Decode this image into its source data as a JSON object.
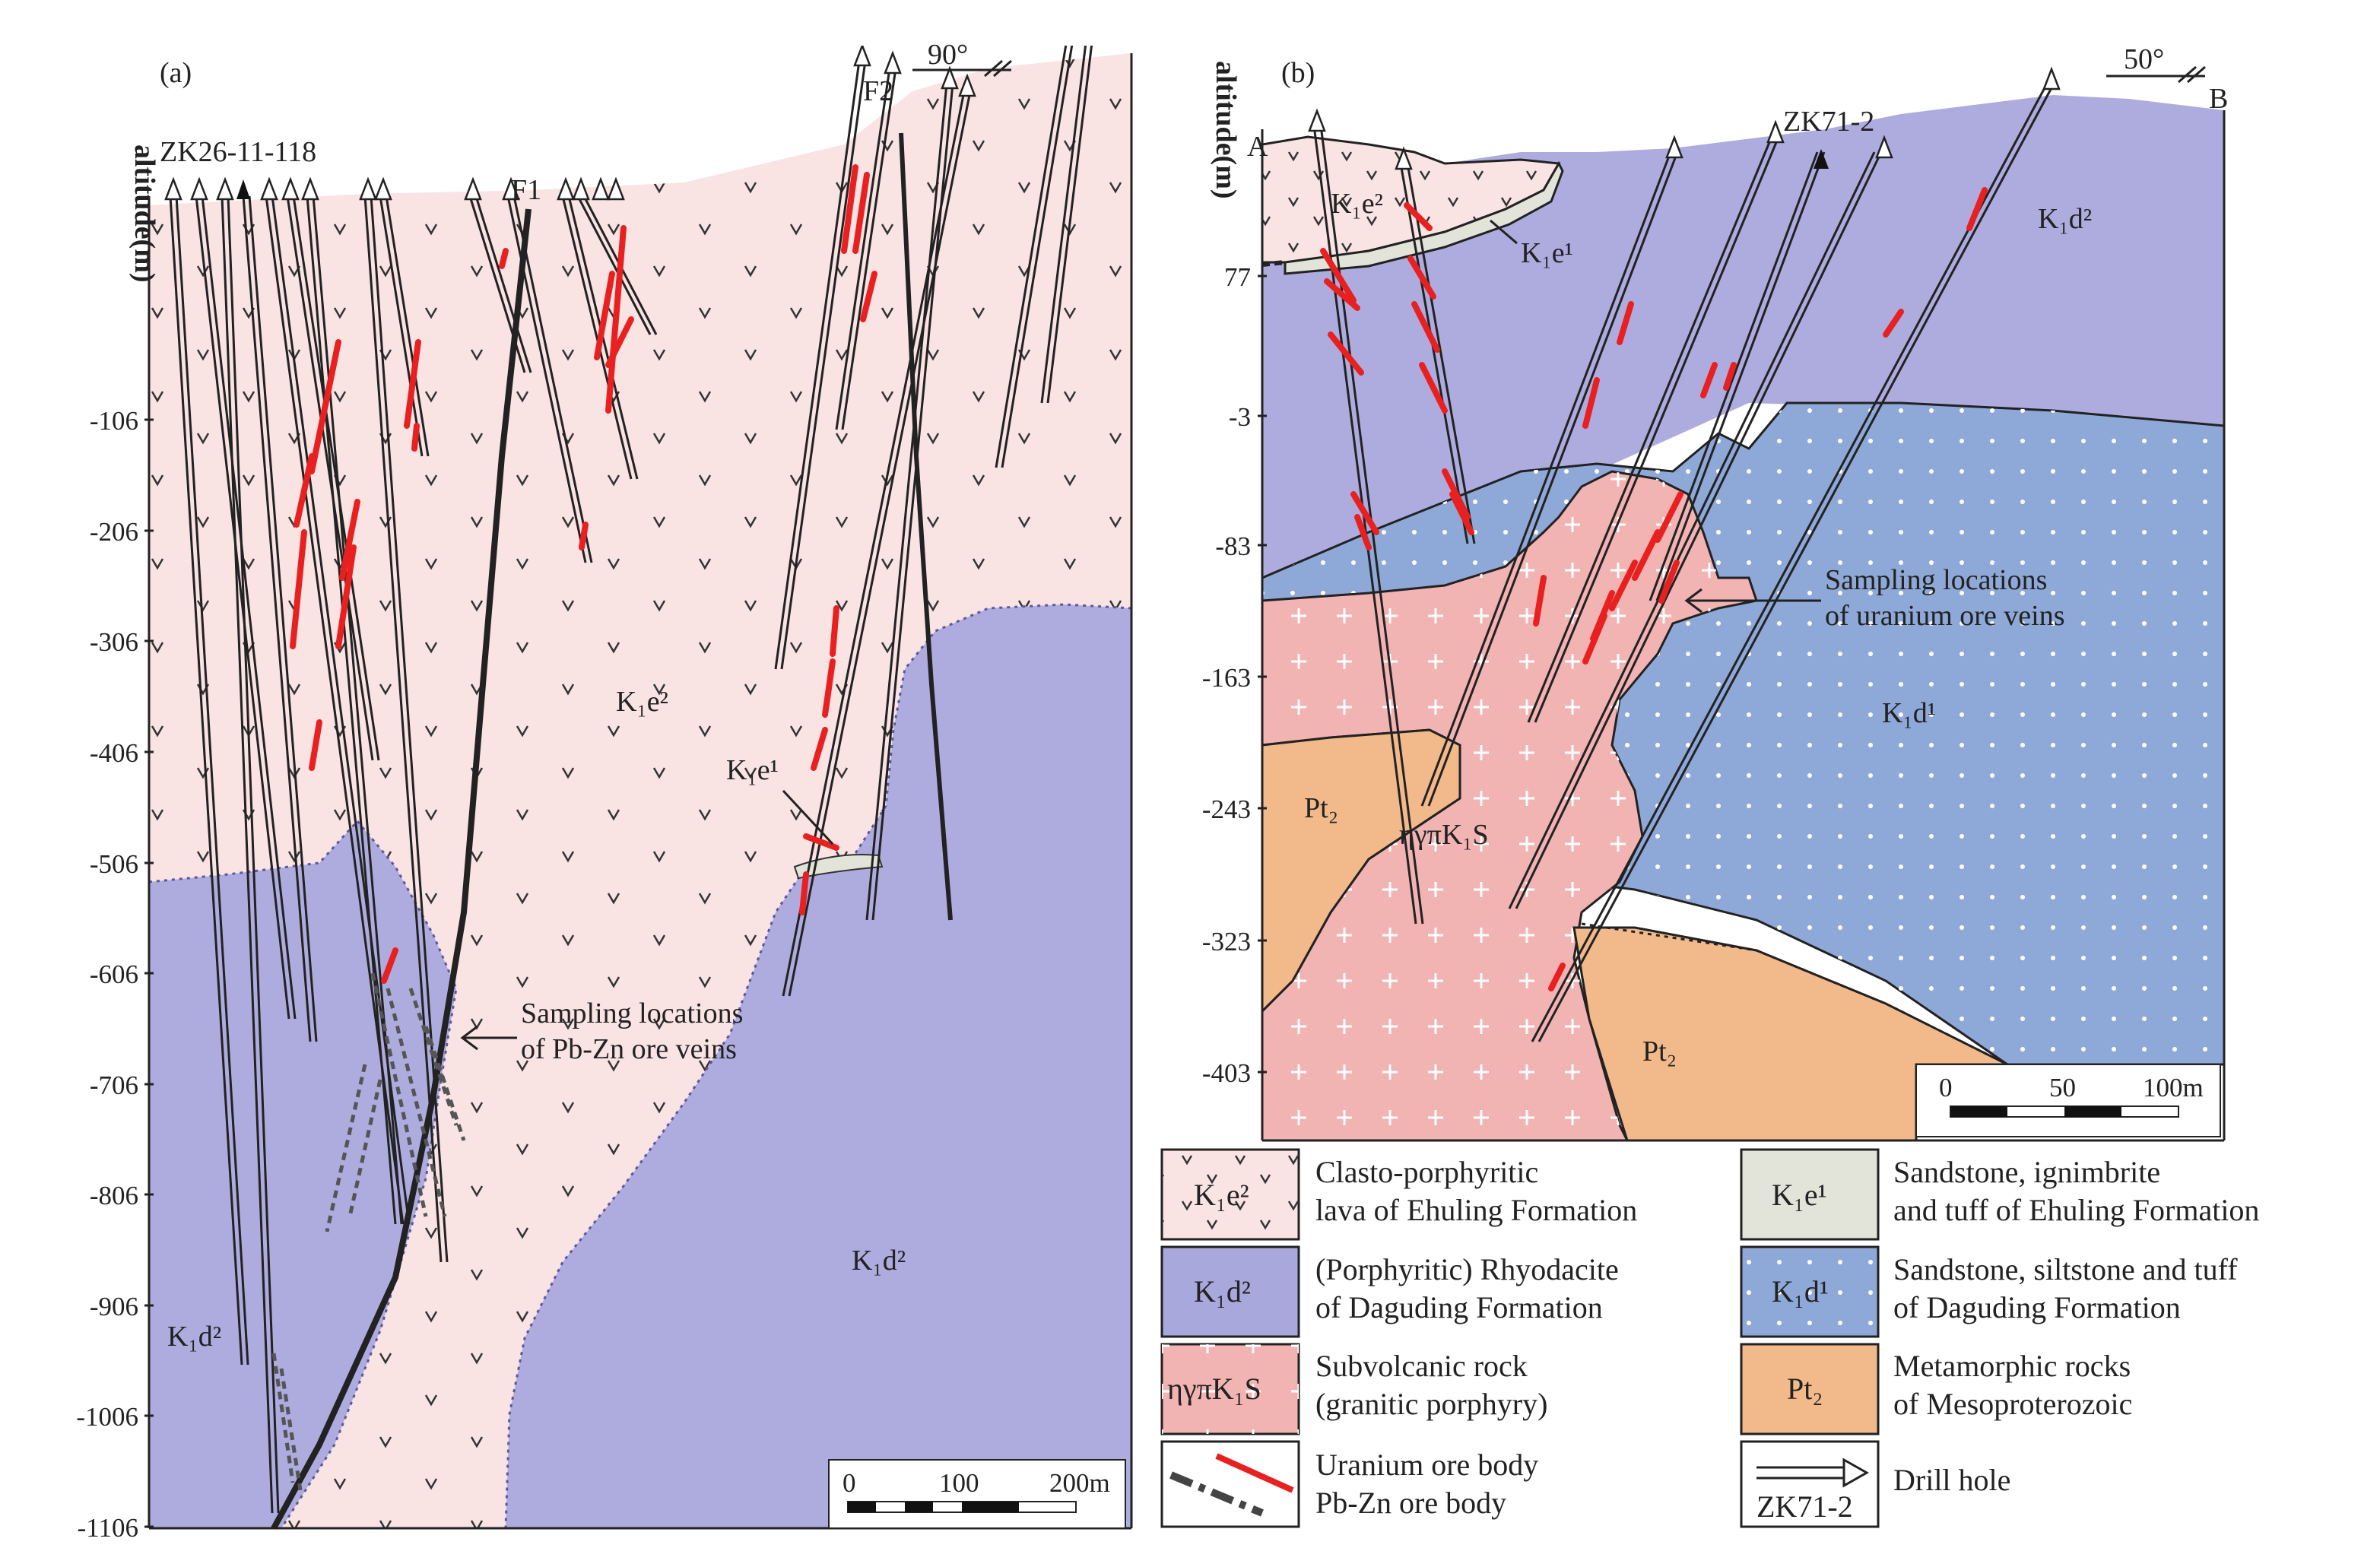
{
  "panel_a": {
    "tag": "(a)",
    "altitude_label": "altitude(m)",
    "ticks": [
      "-106",
      "-206",
      "-306",
      "-406",
      "-506",
      "-606",
      "-706",
      "-806",
      "-906",
      "-1006",
      "-1106"
    ],
    "orientation": "90°",
    "drill_label": "ZK26-11-118",
    "fault_labels": [
      "F1",
      "F2"
    ],
    "unit_labels": {
      "k1e2": "K₁e²",
      "k1e1": "K₁e¹",
      "k1d2_right": "K₁d²",
      "k1d2_left": "K₁d²"
    },
    "sampling_note": [
      "Sampling locations",
      "of Pb-Zn ore veins"
    ],
    "scale_bar": [
      "0",
      "100",
      "200m"
    ]
  },
  "panel_b": {
    "tag": "(b)",
    "altitude_label": "altitude(m)",
    "ticks": [
      "77",
      "-3",
      "-83",
      "-163",
      "-243",
      "-323",
      "-403"
    ],
    "orientation": "50°",
    "end_labels": [
      "A",
      "B"
    ],
    "drill_label": "ZK71-2",
    "unit_labels": {
      "k1e2": "K₁e²",
      "k1e1": "K₁e¹",
      "k1d2": "K₁d²",
      "k1d1": "K₁d¹",
      "pt2_left": "Pt₂",
      "pt2_right": "Pt₂",
      "intrusion": "ηγπK₁S"
    },
    "sampling_note": [
      "Sampling locations",
      "of uranium ore veins"
    ],
    "scale_bar": [
      "0",
      "50",
      "100m"
    ]
  },
  "legend": [
    {
      "symbol": "K₁e²",
      "lines": [
        "Clasto-porphyritic",
        "lava of Ehuling Formation"
      ],
      "color": "#f9e3e3"
    },
    {
      "symbol": "K₁e¹",
      "lines": [
        "Sandstone, ignimbrite",
        "and tuff of Ehuling Formation"
      ],
      "color": "#e2e4da"
    },
    {
      "symbol": "K₁d²",
      "lines": [
        "(Porphyritic) Rhyodacite",
        "of Daguding Formation"
      ],
      "color": "#a9a8dd"
    },
    {
      "symbol": "K₁d¹",
      "lines": [
        "Sandstone, siltstone and tuff",
        "of Daguding Formation"
      ],
      "color": "#8ea9d8"
    },
    {
      "symbol": "ηγπK₁S",
      "lines": [
        "Subvolcanic rock",
        "(granitic porphyry)"
      ],
      "color": "#f2b3b3"
    },
    {
      "symbol": "Pt₂",
      "lines": [
        "Metamorphic rocks",
        "of Mesoproterozoic"
      ],
      "color": "#f2b98a"
    },
    {
      "symbol": "",
      "lines": [
        "Uranium ore body",
        "Pb-Zn ore body"
      ],
      "color": "#e82020"
    },
    {
      "symbol": "ZK71-2",
      "lines": [
        "Drill hole"
      ],
      "color": "#ffffff"
    }
  ]
}
